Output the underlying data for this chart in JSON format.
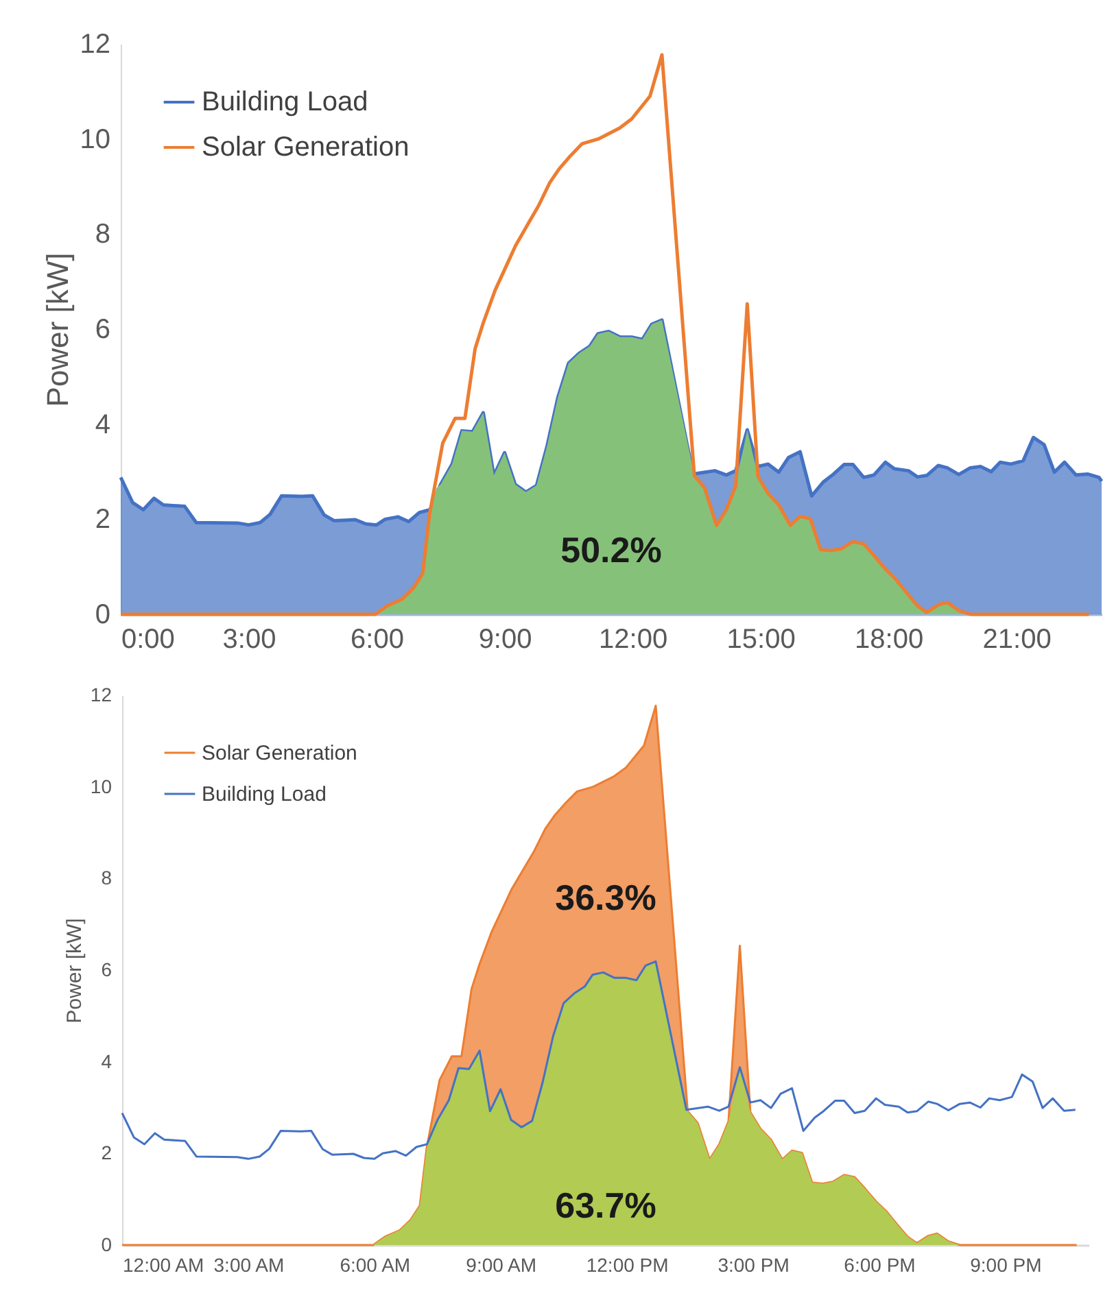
{
  "chart_data": [
    {
      "type": "area",
      "ylabel": "Power [kW]",
      "xlim": [
        0,
        23
      ],
      "ylim": [
        0,
        12
      ],
      "yticks": [
        0,
        2,
        4,
        6,
        8,
        10,
        12
      ],
      "xticks": [
        {
          "value": 0,
          "label": "0:00"
        },
        {
          "value": 3,
          "label": "3:00"
        },
        {
          "value": 6,
          "label": "6:00"
        },
        {
          "value": 9,
          "label": "9:00"
        },
        {
          "value": 12,
          "label": "12:00"
        },
        {
          "value": 15,
          "label": "15:00"
        },
        {
          "value": 18,
          "label": "18:00"
        },
        {
          "value": 21,
          "label": "21:00"
        }
      ],
      "legend": "top left",
      "annotations": [
        "50.2%"
      ],
      "series": [
        {
          "type": "area",
          "name": "Building Load",
          "color": "#4472c4",
          "x": [
            0,
            0.28,
            0.53,
            0.78,
            1.0,
            1.5,
            1.77,
            2.74,
            3.0,
            3.27,
            3.5,
            3.77,
            4.25,
            4.5,
            4.77,
            5.0,
            5.5,
            5.75,
            6.0,
            6.2,
            6.5,
            6.75,
            7.0,
            7.25,
            7.5,
            7.77,
            8.0,
            8.25,
            8.5,
            8.75,
            9.0,
            9.25,
            9.5,
            9.75,
            10.0,
            10.25,
            10.5,
            10.75,
            11.0,
            11.19,
            11.44,
            11.71,
            11.98,
            12.23,
            12.45,
            12.69,
            13.42,
            13.93,
            14.2,
            14.42,
            14.69,
            14.94,
            15.18,
            15.43,
            15.66,
            15.93,
            16.2,
            16.47,
            16.69,
            16.96,
            17.17,
            17.42,
            17.66,
            17.93,
            18.14,
            18.47,
            18.68,
            18.9,
            19.17,
            19.38,
            19.65,
            19.92,
            20.16,
            20.41,
            20.62,
            20.87,
            21.16,
            21.4,
            21.65,
            21.89,
            22.13,
            22.4,
            22.67,
            22.94,
            23
          ],
          "values": [
            2.88,
            2.35,
            2.2,
            2.44,
            2.3,
            2.27,
            1.93,
            1.92,
            1.88,
            1.93,
            2.1,
            2.49,
            2.48,
            2.49,
            2.09,
            1.97,
            1.99,
            1.9,
            1.88,
            2.0,
            2.05,
            1.95,
            2.14,
            2.2,
            2.73,
            3.16,
            3.86,
            3.84,
            4.24,
            2.92,
            3.4,
            2.73,
            2.57,
            2.71,
            3.55,
            4.56,
            5.28,
            5.49,
            5.64,
            5.9,
            5.95,
            5.83,
            5.83,
            5.78,
            6.1,
            6.19,
            2.95,
            3.02,
            2.93,
            3.02,
            3.88,
            3.11,
            3.16,
            2.99,
            3.3,
            3.42,
            2.49,
            2.78,
            2.93,
            3.15,
            3.15,
            2.88,
            2.93,
            3.2,
            3.06,
            3.02,
            2.89,
            2.92,
            3.13,
            3.08,
            2.94,
            3.08,
            3.11,
            3.0,
            3.2,
            3.16,
            3.23,
            3.72,
            3.57,
            2.99,
            3.2,
            2.93,
            2.95,
            2.88,
            2.8
          ]
        },
        {
          "type": "area",
          "color": "#86c17a",
          "x": [
            5.97,
            6.25,
            6.6,
            6.86,
            7.08,
            7.24,
            7.4,
            7.5,
            7.77,
            8.0,
            8.25,
            8.5,
            8.75,
            9.0,
            9.25,
            9.5,
            9.75,
            10.0,
            10.25,
            10.5,
            10.75,
            11.0,
            11.19,
            11.44,
            11.71,
            11.98,
            12.23,
            12.45,
            12.69,
            13.45,
            13.69,
            13.97,
            14.2,
            14.42,
            14.69,
            14.94,
            15.18,
            15.43,
            15.7,
            15.93,
            16.17,
            16.41,
            16.66,
            16.9,
            17.17,
            17.42,
            17.66,
            17.93,
            18.17,
            18.43,
            18.68,
            18.9,
            19.17,
            19.38,
            19.65,
            19.92
          ],
          "values": [
            0,
            0.18,
            0.32,
            0.55,
            0.86,
            2.1,
            2.65,
            2.73,
            3.16,
            3.86,
            3.84,
            4.24,
            2.92,
            3.4,
            2.73,
            2.57,
            2.71,
            3.55,
            4.56,
            5.28,
            5.49,
            5.64,
            5.9,
            5.95,
            5.83,
            5.83,
            5.78,
            6.1,
            6.19,
            2.92,
            2.66,
            1.87,
            2.2,
            2.7,
            3.88,
            2.9,
            2.54,
            2.3,
            1.87,
            2.06,
            2.01,
            1.36,
            1.34,
            1.38,
            1.53,
            1.48,
            1.24,
            0.95,
            0.74,
            0.45,
            0.18,
            0.04,
            0.2,
            0.25,
            0.08,
            0
          ]
        },
        {
          "type": "line",
          "name": "Solar Generation",
          "color": "#ed7d31",
          "x": [
            0,
            5.97,
            6.25,
            6.6,
            6.86,
            7.08,
            7.24,
            7.55,
            7.84,
            8.07,
            8.31,
            8.5,
            8.78,
            9.0,
            9.26,
            9.53,
            9.8,
            10.06,
            10.28,
            10.55,
            10.82,
            11.2,
            11.7,
            11.98,
            12.41,
            12.69,
            13.45,
            13.69,
            13.97,
            14.2,
            14.42,
            14.69,
            14.94,
            15.18,
            15.43,
            15.7,
            15.93,
            16.17,
            16.41,
            16.66,
            16.9,
            17.17,
            17.42,
            17.66,
            17.93,
            18.17,
            18.43,
            18.68,
            18.9,
            19.17,
            19.38,
            19.65,
            19.92,
            22.7
          ],
          "values": [
            0,
            0,
            0.18,
            0.32,
            0.55,
            0.86,
            2.1,
            3.6,
            4.12,
            4.12,
            5.59,
            6.13,
            6.82,
            7.25,
            7.76,
            8.18,
            8.6,
            9.08,
            9.37,
            9.65,
            9.9,
            10.0,
            10.23,
            10.42,
            10.9,
            11.77,
            2.92,
            2.66,
            1.87,
            2.2,
            2.7,
            6.53,
            2.9,
            2.54,
            2.3,
            1.87,
            2.06,
            2.01,
            1.36,
            1.34,
            1.38,
            1.53,
            1.48,
            1.24,
            0.95,
            0.74,
            0.45,
            0.18,
            0.04,
            0.2,
            0.25,
            0.08,
            0,
            0
          ]
        }
      ]
    },
    {
      "type": "area",
      "ylabel": "Power [kW]",
      "xlim": [
        0,
        23
      ],
      "ylim": [
        0,
        12
      ],
      "yticks": [
        0,
        2,
        4,
        6,
        8,
        10,
        12
      ],
      "xticks": [
        {
          "value": 0,
          "label": "12:00 AM"
        },
        {
          "value": 3,
          "label": "3:00 AM"
        },
        {
          "value": 6,
          "label": "6:00 AM"
        },
        {
          "value": 9,
          "label": "9:00 AM"
        },
        {
          "value": 12,
          "label": "12:00 PM"
        },
        {
          "value": 15,
          "label": "3:00 PM"
        },
        {
          "value": 18,
          "label": "6:00 PM"
        },
        {
          "value": 21,
          "label": "9:00 PM"
        }
      ],
      "legend": "top left",
      "annotations": [
        "36.3%",
        "63.7%"
      ],
      "series": [
        {
          "type": "area",
          "name": "Solar Generation",
          "color": "#ed7d31",
          "x": [
            0,
            5.97,
            6.25,
            6.6,
            6.86,
            7.08,
            7.24,
            7.55,
            7.84,
            8.07,
            8.31,
            8.5,
            8.78,
            9.0,
            9.26,
            9.53,
            9.8,
            10.06,
            10.28,
            10.55,
            10.82,
            11.2,
            11.7,
            11.98,
            12.41,
            12.69,
            13.45,
            13.69,
            13.97,
            14.2,
            14.42,
            14.69,
            14.94,
            15.18,
            15.43,
            15.7,
            15.93,
            16.17,
            16.41,
            16.66,
            16.9,
            17.17,
            17.42,
            17.66,
            17.93,
            18.17,
            18.43,
            18.68,
            18.9,
            19.17,
            19.38,
            19.65,
            19.92,
            22.7
          ],
          "values": [
            0,
            0,
            0.18,
            0.32,
            0.55,
            0.86,
            2.1,
            3.6,
            4.12,
            4.12,
            5.59,
            6.13,
            6.82,
            7.25,
            7.76,
            8.18,
            8.6,
            9.08,
            9.37,
            9.65,
            9.9,
            10.0,
            10.23,
            10.42,
            10.9,
            11.77,
            2.92,
            2.66,
            1.87,
            2.2,
            2.7,
            6.53,
            2.9,
            2.54,
            2.3,
            1.87,
            2.06,
            2.01,
            1.36,
            1.34,
            1.38,
            1.53,
            1.48,
            1.24,
            0.95,
            0.74,
            0.45,
            0.18,
            0.04,
            0.2,
            0.25,
            0.08,
            0,
            0
          ]
        },
        {
          "type": "area",
          "color": "#b1cb53",
          "x": [
            5.97,
            6.25,
            6.6,
            6.86,
            7.08,
            7.24,
            7.4,
            7.5,
            7.77,
            8.0,
            8.25,
            8.5,
            8.75,
            9.0,
            9.25,
            9.5,
            9.75,
            10.0,
            10.25,
            10.5,
            10.75,
            11.0,
            11.19,
            11.44,
            11.71,
            11.98,
            12.23,
            12.45,
            12.69,
            13.45,
            13.69,
            13.97,
            14.2,
            14.42,
            14.69,
            14.94,
            15.18,
            15.43,
            15.7,
            15.93,
            16.17,
            16.41,
            16.66,
            16.9,
            17.17,
            17.42,
            17.66,
            17.93,
            18.17,
            18.43,
            18.68,
            18.9,
            19.17,
            19.38,
            19.65,
            19.92
          ],
          "values": [
            0,
            0.18,
            0.32,
            0.55,
            0.86,
            2.1,
            2.65,
            2.73,
            3.16,
            3.86,
            3.84,
            4.24,
            2.92,
            3.4,
            2.73,
            2.57,
            2.71,
            3.55,
            4.56,
            5.28,
            5.49,
            5.64,
            5.9,
            5.95,
            5.83,
            5.83,
            5.78,
            6.1,
            6.19,
            2.92,
            2.66,
            1.87,
            2.2,
            2.7,
            3.88,
            2.9,
            2.54,
            2.3,
            1.87,
            2.06,
            2.01,
            1.36,
            1.34,
            1.38,
            1.53,
            1.48,
            1.24,
            0.95,
            0.74,
            0.45,
            0.18,
            0.04,
            0.2,
            0.25,
            0.08,
            0
          ]
        },
        {
          "type": "line",
          "name": "Building Load",
          "color": "#4472c4",
          "x": [
            0,
            0.28,
            0.53,
            0.78,
            1.0,
            1.5,
            1.77,
            2.74,
            3.0,
            3.27,
            3.5,
            3.77,
            4.25,
            4.5,
            4.77,
            5.0,
            5.5,
            5.75,
            6.0,
            6.2,
            6.5,
            6.75,
            7.0,
            7.25,
            7.5,
            7.77,
            8.0,
            8.25,
            8.5,
            8.75,
            9.0,
            9.25,
            9.5,
            9.75,
            10.0,
            10.25,
            10.5,
            10.75,
            11.0,
            11.19,
            11.44,
            11.71,
            11.98,
            12.23,
            12.45,
            12.69,
            13.42,
            13.93,
            14.2,
            14.42,
            14.69,
            14.94,
            15.18,
            15.43,
            15.66,
            15.93,
            16.2,
            16.47,
            16.69,
            16.96,
            17.17,
            17.42,
            17.66,
            17.93,
            18.14,
            18.47,
            18.68,
            18.9,
            19.17,
            19.38,
            19.65,
            19.92,
            20.16,
            20.41,
            20.62,
            20.87,
            21.16,
            21.4,
            21.65,
            21.89,
            22.13,
            22.4,
            22.67
          ],
          "values": [
            2.88,
            2.35,
            2.2,
            2.44,
            2.3,
            2.27,
            1.93,
            1.92,
            1.88,
            1.93,
            2.1,
            2.49,
            2.48,
            2.49,
            2.09,
            1.97,
            1.99,
            1.9,
            1.88,
            2.0,
            2.05,
            1.95,
            2.14,
            2.2,
            2.73,
            3.16,
            3.86,
            3.84,
            4.24,
            2.92,
            3.4,
            2.73,
            2.57,
            2.71,
            3.55,
            4.56,
            5.28,
            5.49,
            5.64,
            5.9,
            5.95,
            5.83,
            5.83,
            5.78,
            6.1,
            6.19,
            2.95,
            3.02,
            2.93,
            3.02,
            3.88,
            3.11,
            3.16,
            2.99,
            3.3,
            3.42,
            2.49,
            2.78,
            2.93,
            3.15,
            3.15,
            2.88,
            2.93,
            3.2,
            3.06,
            3.02,
            2.89,
            2.92,
            3.13,
            3.08,
            2.94,
            3.08,
            3.11,
            3.0,
            3.2,
            3.16,
            3.23,
            3.72,
            3.57,
            2.99,
            3.2,
            2.93,
            2.95
          ]
        }
      ]
    }
  ]
}
